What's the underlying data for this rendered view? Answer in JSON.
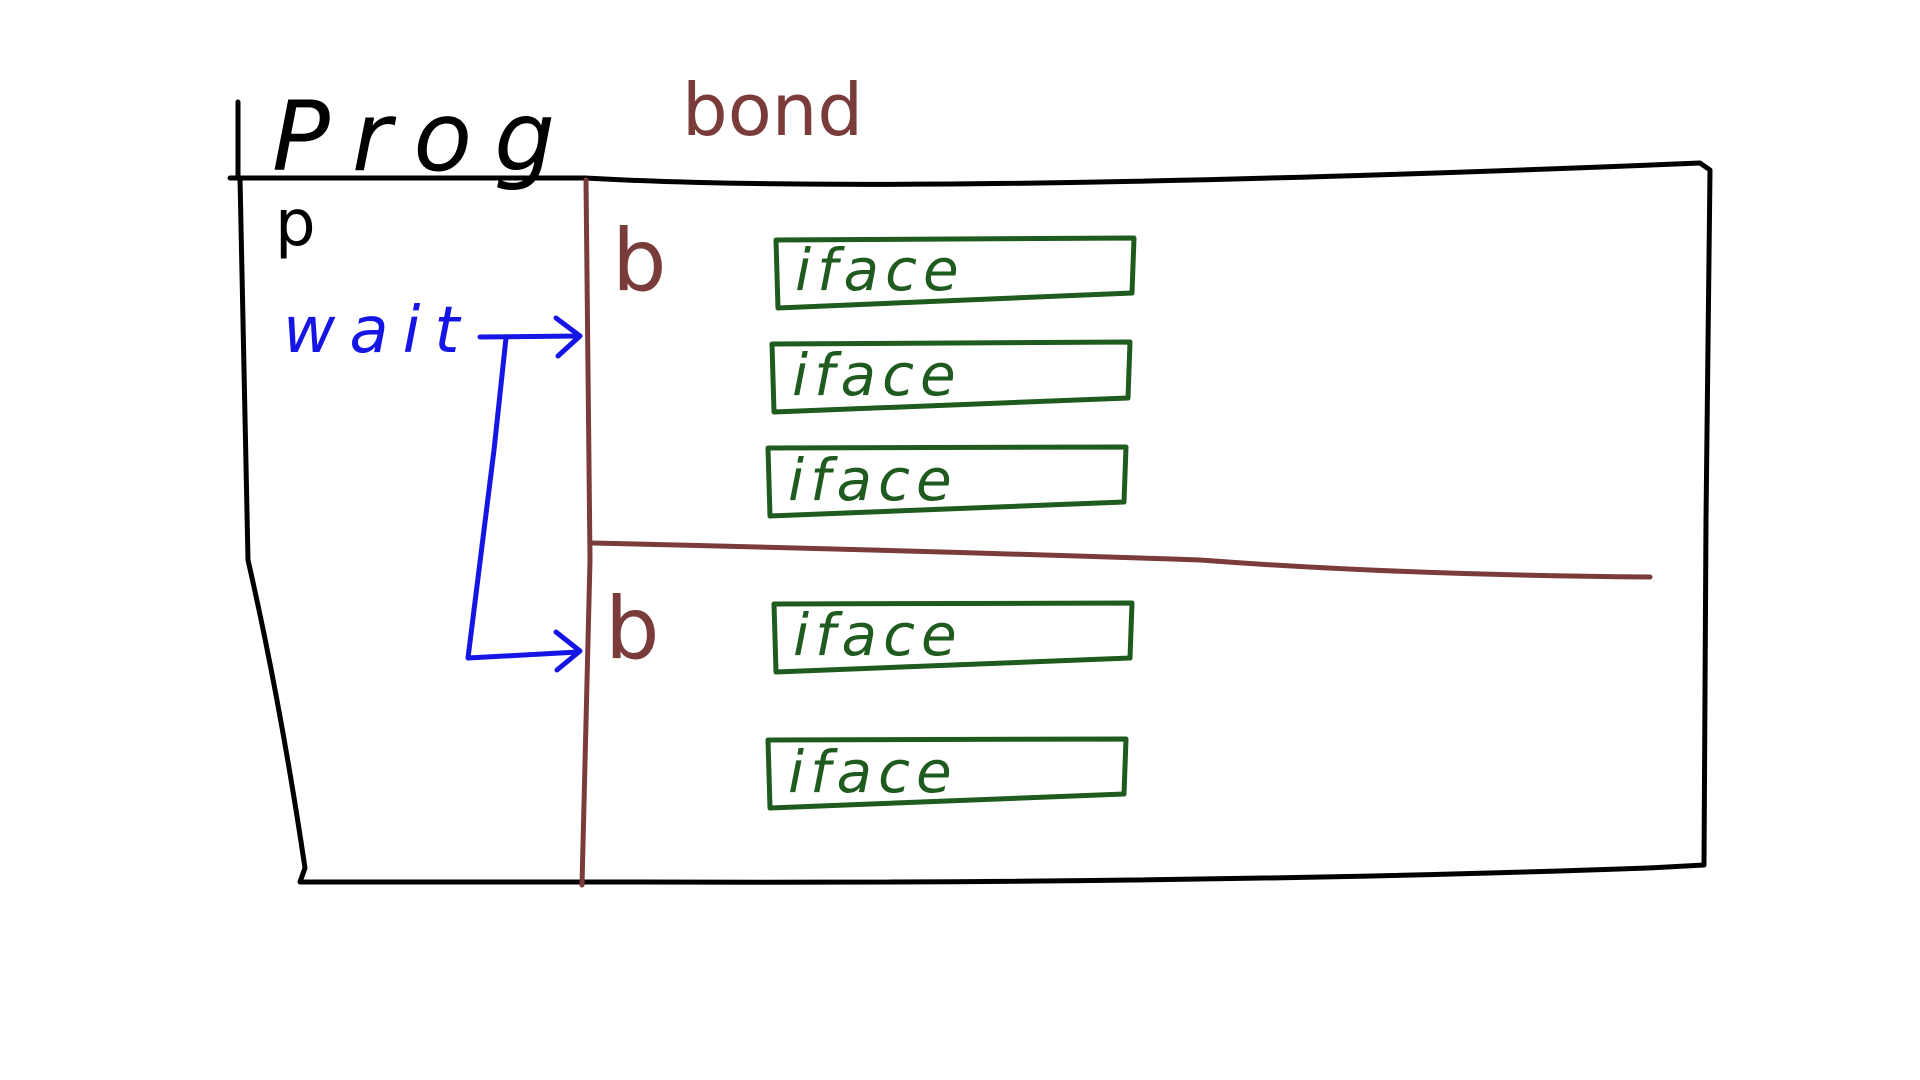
{
  "diagram": {
    "title": "Prog",
    "bond_label": "bond",
    "process_label": "p",
    "wait_label": "wait",
    "bonds": [
      {
        "label": "b",
        "ifaces": [
          "iface",
          "iface",
          "iface"
        ]
      },
      {
        "label": "b",
        "ifaces": [
          "iface",
          "iface"
        ]
      }
    ]
  },
  "colors": {
    "outline": "#000000",
    "bond": "#7a3b3b",
    "iface": "#1f5a1f",
    "wait": "#1515e6",
    "background": "#ffffff"
  }
}
